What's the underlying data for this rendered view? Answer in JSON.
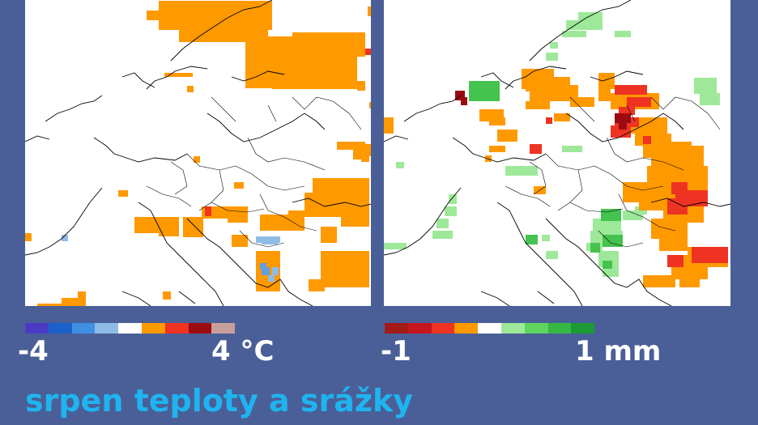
{
  "panels": [
    {
      "name": "temperature",
      "cells": [
        {
          "c": "#ff9900",
          "r": [
            [
              150,
              13,
              30,
              12
            ],
            [
              165,
              1,
              140,
              36
            ],
            [
              190,
              20,
              110,
              32
            ],
            [
              272,
              45,
              115,
              64
            ],
            [
              305,
              70,
              105,
              40
            ],
            [
              330,
              40,
              90,
              30
            ],
            [
              405,
              50,
              10,
              10
            ],
            [
              423,
              8,
              24,
              12
            ],
            [
              410,
              100,
              10,
              12
            ],
            [
              172,
              90,
              35,
              5
            ],
            [
              200,
              106,
              8,
              8
            ],
            [
              425,
              126,
              8,
              8
            ],
            [
              385,
              175,
              35,
              10
            ],
            [
              405,
              185,
              20,
              12
            ],
            [
              415,
              178,
              25,
              15
            ],
            [
              415,
              192,
              10,
              8
            ],
            [
              208,
              193,
              8,
              8
            ],
            [
              115,
              235,
              12,
              8
            ],
            [
              258,
              225,
              12,
              8
            ],
            [
              0,
              288,
              8,
              10
            ],
            [
              135,
              268,
              55,
              20
            ],
            [
              165,
              280,
              25,
              12
            ],
            [
              195,
              268,
              25,
              25
            ],
            [
              218,
              255,
              40,
              15
            ],
            [
              250,
              255,
              25,
              20
            ],
            [
              290,
              265,
              35,
              20
            ],
            [
              345,
              238,
              80,
              30
            ],
            [
              355,
              220,
              70,
              25
            ],
            [
              325,
              260,
              20,
              25
            ],
            [
              365,
              280,
              20,
              20
            ],
            [
              390,
              225,
              35,
              55
            ],
            [
              255,
              290,
              20,
              15
            ],
            [
              285,
              310,
              30,
              50
            ],
            [
              365,
              310,
              60,
              45
            ],
            [
              395,
              335,
              30,
              20
            ],
            [
              350,
              345,
              20,
              15
            ],
            [
              15,
              375,
              40,
              3
            ],
            [
              45,
              368,
              30,
              10
            ],
            [
              65,
              360,
              10,
              10
            ],
            [
              170,
              360,
              10,
              10
            ]
          ]
        },
        {
          "c": "#ee3322",
          "r": [
            [
              420,
              60,
              8,
              8
            ],
            [
              222,
              255,
              8,
              12
            ]
          ]
        },
        {
          "c": "#8fbce6",
          "r": [
            [
              285,
              292,
              30,
              8
            ],
            [
              292,
              296,
              20,
              6
            ],
            [
              305,
              330,
              8,
              10
            ],
            [
              300,
              340,
              8,
              8
            ],
            [
              45,
              290,
              8,
              8
            ]
          ]
        },
        {
          "c": "#5f9ee0",
          "r": [
            [
              292,
              330,
              10,
              10
            ],
            [
              290,
              325,
              8,
              8
            ]
          ]
        }
      ]
    },
    {
      "name": "precipitation",
      "cells": [
        {
          "c": "#9ee89a",
          "r": [
            [
              240,
              15,
              30,
              10
            ],
            [
              225,
              25,
              45,
              12
            ],
            [
              220,
              38,
              30,
              8
            ],
            [
              285,
              38,
              20,
              8
            ],
            [
              200,
              65,
              15,
              10
            ],
            [
              205,
              52,
              10,
              8
            ],
            [
              115,
              105,
              25,
              15
            ],
            [
              383,
              96,
              28,
              20
            ],
            [
              390,
              115,
              25,
              15
            ],
            [
              220,
              180,
              25,
              8
            ],
            [
              150,
              205,
              40,
              12
            ],
            [
              295,
              260,
              25,
              12
            ],
            [
              60,
              285,
              25,
              10
            ],
            [
              65,
              270,
              15,
              12
            ],
            [
              75,
              255,
              15,
              12
            ],
            [
              80,
              240,
              10,
              12
            ],
            [
              0,
              300,
              28,
              8
            ],
            [
              195,
              290,
              10,
              8
            ],
            [
              200,
              310,
              15,
              10
            ],
            [
              258,
              270,
              35,
              20
            ],
            [
              255,
              285,
              40,
              15
            ],
            [
              250,
              300,
              20,
              10
            ],
            [
              265,
              310,
              25,
              20
            ],
            [
              270,
              330,
              20,
              12
            ],
            [
              15,
              200,
              10,
              8
            ],
            [
              310,
              255,
              15,
              10
            ]
          ]
        },
        {
          "c": "#44c34e",
          "r": [
            [
              105,
              100,
              38,
              25
            ],
            [
              175,
              290,
              15,
              12
            ],
            [
              268,
              258,
              25,
              15
            ],
            [
              270,
              290,
              25,
              15
            ],
            [
              255,
              300,
              12,
              12
            ],
            [
              270,
              322,
              12,
              10
            ]
          ]
        },
        {
          "c": "#ff9900",
          "r": [
            [
              0,
              145,
              12,
              20
            ],
            [
              118,
              135,
              30,
              15
            ],
            [
              130,
              145,
              20,
              10
            ],
            [
              140,
              160,
              25,
              15
            ],
            [
              130,
              180,
              20,
              8
            ],
            [
              170,
              85,
              40,
              25
            ],
            [
              180,
              95,
              50,
              30
            ],
            [
              175,
              125,
              30,
              10
            ],
            [
              215,
              105,
              25,
              15
            ],
            [
              230,
              120,
              30,
              12
            ],
            [
              265,
              90,
              20,
              20
            ],
            [
              265,
              110,
              15,
              15
            ],
            [
              280,
              115,
              60,
              20
            ],
            [
              300,
              145,
              50,
              20
            ],
            [
              310,
              165,
              45,
              15
            ],
            [
              320,
              175,
              60,
              20
            ],
            [
              330,
              180,
              65,
              30
            ],
            [
              325,
              205,
              75,
              25
            ],
            [
              355,
              195,
              25,
              15
            ],
            [
              295,
              225,
              105,
              25
            ],
            [
              315,
              240,
              75,
              20
            ],
            [
              345,
              255,
              50,
              20
            ],
            [
              330,
              270,
              45,
              25
            ],
            [
              340,
              290,
              35,
              20
            ],
            [
              355,
              315,
              45,
              30
            ],
            [
              375,
              305,
              50,
              25
            ],
            [
              320,
              340,
              40,
              15
            ],
            [
              365,
              340,
              25,
              15
            ],
            [
              175,
              105,
              20,
              8
            ],
            [
              210,
              140,
              20,
              10
            ],
            [
              370,
              230,
              30,
              10
            ],
            [
              185,
              230,
              15,
              10
            ],
            [
              125,
              192,
              8,
              8
            ]
          ]
        },
        {
          "c": "#ee3322",
          "r": [
            [
              285,
              105,
              40,
              12
            ],
            [
              300,
              120,
              30,
              12
            ],
            [
              290,
              132,
              20,
              10
            ],
            [
              285,
              145,
              30,
              12
            ],
            [
              280,
              155,
              25,
              15
            ],
            [
              320,
              168,
              10,
              10
            ],
            [
              360,
              235,
              40,
              20
            ],
            [
              350,
              245,
              25,
              20
            ],
            [
              355,
              225,
              20,
              15
            ],
            [
              350,
              315,
              20,
              15
            ],
            [
              380,
              305,
              45,
              20
            ],
            [
              200,
              145,
              8,
              8
            ],
            [
              180,
              178,
              15,
              12
            ]
          ]
        },
        {
          "c": "#9b0b11",
          "r": [
            [
              88,
              112,
              12,
              12
            ],
            [
              95,
              120,
              8,
              10
            ],
            [
              285,
              140,
              20,
              12
            ],
            [
              290,
              150,
              10,
              10
            ]
          ]
        }
      ]
    }
  ],
  "temperature": {
    "colorbar": [
      "#4b3bc4",
      "#1c61c9",
      "#3f8fe3",
      "#8fbce6",
      "#ffffff",
      "#ff9900",
      "#ee3322",
      "#9b0b11",
      "#c8a09a"
    ],
    "min_label": "-4",
    "max_label": "4 °C"
  },
  "precipitation": {
    "colorbar": [
      "#a31b16",
      "#c4161c",
      "#ee3322",
      "#ff9900",
      "#ffffff",
      "#9ee89a",
      "#5fd45f",
      "#36b845",
      "#1c9a35"
    ],
    "min_label": "-1",
    "max_label": "1 mm"
  },
  "caption": "srpen teploty a srážky"
}
